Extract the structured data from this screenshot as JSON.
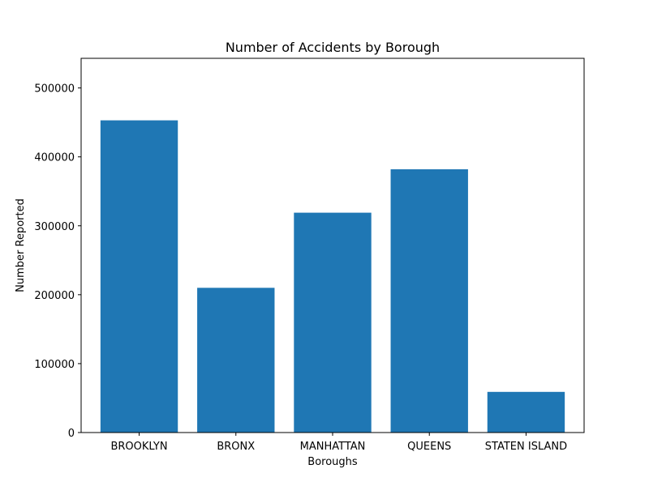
{
  "chart_data": {
    "type": "bar",
    "title": "Number of Accidents by Borough",
    "xlabel": "Boroughs",
    "ylabel": "Number Reported",
    "categories": [
      "BROOKLYN",
      "BRONX",
      "MANHATTAN",
      "QUEENS",
      "STATEN ISLAND"
    ],
    "values": [
      453000,
      210000,
      319000,
      382000,
      59000
    ],
    "ylim": [
      0,
      543000
    ],
    "yticks": [
      0,
      100000,
      200000,
      300000,
      400000,
      500000
    ],
    "ytick_labels": [
      "0",
      "100000",
      "200000",
      "300000",
      "400000",
      "500000"
    ],
    "bar_color": "#1f77b4",
    "grid": false,
    "legend": false
  }
}
